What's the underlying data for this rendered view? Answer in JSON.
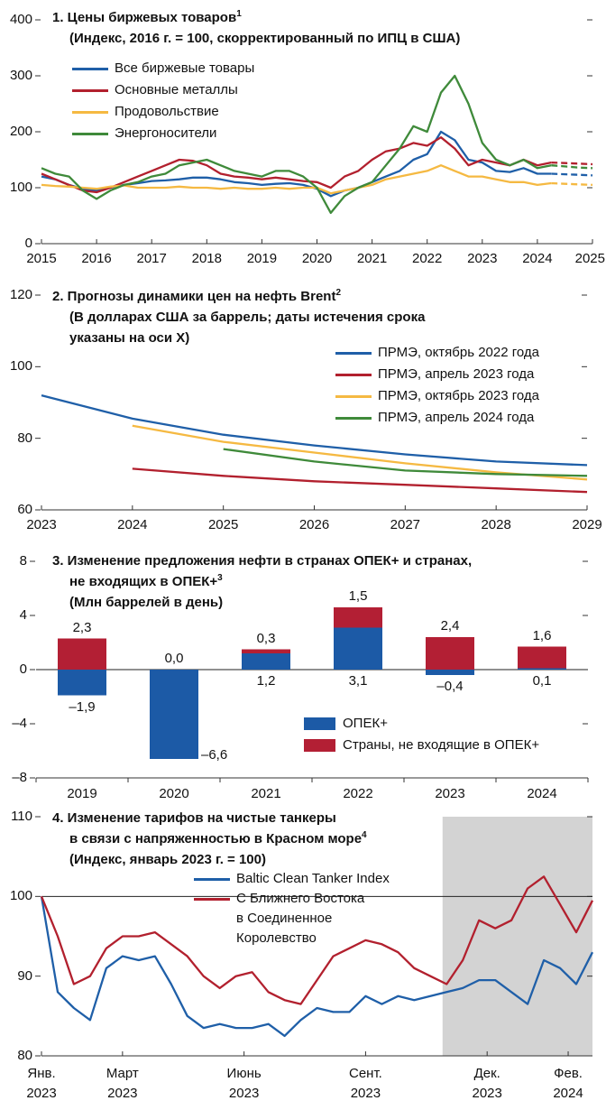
{
  "chart_data": [
    {
      "type": "line",
      "title": "1. Цены биржевых товаров",
      "title_note": "1",
      "subtitle": "(Индекс, 2016 г. = 100, скорректированный по ИПЦ в США)",
      "x": [
        2015,
        2015.25,
        2015.5,
        2015.75,
        2016,
        2016.25,
        2016.5,
        2016.75,
        2017,
        2017.25,
        2017.5,
        2017.75,
        2018,
        2018.25,
        2018.5,
        2018.75,
        2019,
        2019.25,
        2019.5,
        2019.75,
        2020,
        2020.25,
        2020.5,
        2020.75,
        2021,
        2021.25,
        2021.5,
        2021.75,
        2022,
        2022.25,
        2022.5,
        2022.75,
        2023,
        2023.25,
        2023.5,
        2023.75,
        2024,
        2024.25,
        2024.5,
        2024.75,
        2025
      ],
      "series": [
        {
          "name": "Все биржевые товары",
          "color": "#1f5fa8",
          "values": [
            120,
            115,
            105,
            98,
            95,
            100,
            105,
            108,
            112,
            113,
            115,
            118,
            118,
            115,
            110,
            108,
            105,
            107,
            108,
            105,
            98,
            85,
            95,
            100,
            110,
            120,
            130,
            150,
            160,
            200,
            185,
            150,
            145,
            130,
            128,
            135,
            125,
            125,
            124,
            123,
            122
          ]
        },
        {
          "name": "Основные металлы",
          "color": "#b2202e",
          "values": [
            125,
            115,
            105,
            95,
            92,
            100,
            110,
            120,
            130,
            140,
            150,
            148,
            140,
            125,
            120,
            118,
            115,
            118,
            115,
            112,
            110,
            100,
            120,
            130,
            150,
            165,
            170,
            180,
            175,
            190,
            170,
            140,
            150,
            145,
            140,
            150,
            140,
            145,
            144,
            143,
            142
          ]
        },
        {
          "name": "Продовольствие",
          "color": "#f5b942",
          "values": [
            105,
            103,
            102,
            100,
            98,
            102,
            104,
            100,
            100,
            100,
            102,
            100,
            100,
            98,
            100,
            98,
            98,
            100,
            98,
            100,
            100,
            90,
            95,
            100,
            105,
            115,
            120,
            125,
            130,
            140,
            130,
            120,
            120,
            115,
            110,
            110,
            105,
            108,
            107,
            106,
            105
          ]
        },
        {
          "name": "Энергоносители",
          "color": "#3f8a3a",
          "values": [
            135,
            125,
            120,
            95,
            80,
            95,
            105,
            110,
            120,
            125,
            140,
            145,
            150,
            140,
            130,
            125,
            120,
            130,
            130,
            120,
            100,
            55,
            85,
            100,
            110,
            140,
            170,
            210,
            200,
            270,
            300,
            250,
            180,
            150,
            140,
            150,
            135,
            140,
            138,
            136,
            135
          ]
        }
      ],
      "forecast_from": 2024.25,
      "xlim": [
        2015,
        2025
      ],
      "xticks": [
        2015,
        2016,
        2017,
        2018,
        2019,
        2020,
        2021,
        2022,
        2023,
        2024,
        2025
      ],
      "ylim": [
        0,
        400
      ],
      "yticks": [
        0,
        100,
        200,
        300,
        400
      ]
    },
    {
      "type": "line",
      "title": "2. Прогнозы динамики цен на нефть Brent",
      "title_note": "2",
      "subtitle": "(В долларах США за баррель; даты истечения срока\nуказаны на оси X)",
      "series": [
        {
          "name": "ПРМЭ, октябрь 2022 года",
          "color": "#1f5fa8",
          "x": [
            2023,
            2024,
            2025,
            2026,
            2027,
            2028,
            2029
          ],
          "values": [
            92,
            85.5,
            81,
            78,
            75.5,
            73.5,
            72.5
          ]
        },
        {
          "name": "ПРМЭ, апрель 2023 года",
          "color": "#b2202e",
          "x": [
            2024,
            2025,
            2026,
            2027,
            2028,
            2029
          ],
          "values": [
            71.5,
            69.5,
            68,
            67,
            66,
            65
          ]
        },
        {
          "name": "ПРМЭ, октябрь 2023 года",
          "color": "#f5b942",
          "x": [
            2024,
            2025,
            2026,
            2027,
            2028,
            2029
          ],
          "values": [
            83.5,
            79,
            76,
            73,
            70.5,
            68.5
          ]
        },
        {
          "name": "ПРМЭ, апрель 2024 года",
          "color": "#3f8a3a",
          "x": [
            2025,
            2026,
            2027,
            2028,
            2029
          ],
          "values": [
            77,
            73.5,
            71,
            70,
            69.5
          ]
        }
      ],
      "xlim": [
        2023,
        2029
      ],
      "xticks": [
        2023,
        2024,
        2025,
        2026,
        2027,
        2028,
        2029
      ],
      "ylim": [
        60,
        120
      ],
      "yticks": [
        60,
        80,
        100,
        120
      ]
    },
    {
      "type": "stacked_bar",
      "title": "3. Изменение предложения нефти в странах ОПЕК+ и странах,\nне входящих в ОПЕК+",
      "title_note": "3",
      "subtitle": "(Млн баррелей в день)",
      "categories": [
        "2019",
        "2020",
        "2021",
        "2022",
        "2023",
        "2024"
      ],
      "series": [
        {
          "name": "ОПЕК+",
          "color": "#1c5aa6",
          "values": [
            -1.9,
            -6.6,
            1.2,
            3.1,
            -0.4,
            0.1
          ],
          "value_labels": [
            "–1,9",
            "–6,6",
            "1,2",
            "3,1",
            "–0,4",
            "0,1"
          ]
        },
        {
          "name": "Страны, не входящие в ОПЕК+",
          "color": "#b31f34",
          "values": [
            2.3,
            0.0,
            0.3,
            1.5,
            2.4,
            1.6
          ],
          "value_labels": [
            "2,3",
            "0,0",
            "0,3",
            "1,5",
            "2,4",
            "1,6"
          ]
        }
      ],
      "ylim": [
        -8,
        8
      ],
      "yticks": [
        {
          "value": -8,
          "label": "–8"
        },
        {
          "value": -4,
          "label": "–4"
        },
        0,
        4,
        8
      ]
    },
    {
      "type": "line",
      "title": "4. Изменение тарифов на чистые танкеры\nв связи с напряженностью в Красном море",
      "title_note": "4",
      "subtitle": "(Индекс, январь 2023 г. = 100)",
      "x": [
        0,
        0.4,
        0.8,
        1.2,
        1.6,
        2,
        2.4,
        2.8,
        3.2,
        3.6,
        4,
        4.4,
        4.8,
        5.2,
        5.6,
        6,
        6.4,
        6.8,
        7.2,
        7.6,
        8,
        8.4,
        8.8,
        9.2,
        9.6,
        10,
        10.4,
        10.8,
        11.2,
        11.6,
        12,
        12.4,
        12.8,
        13.2,
        13.6
      ],
      "series": [
        {
          "name": "Baltic Clean Tanker Index",
          "color": "#1f5fa8",
          "values": [
            100,
            88,
            86,
            84.5,
            91,
            92.5,
            92,
            92.5,
            89,
            85,
            83.5,
            84,
            83.5,
            83.5,
            84,
            82.5,
            84.5,
            86,
            85.5,
            85.5,
            87.5,
            86.5,
            87.5,
            87,
            87.5,
            88,
            88.5,
            89.5,
            89.5,
            88,
            86.5,
            92,
            91,
            89,
            93
          ]
        },
        {
          "name": "С Ближнего Востока\nв Соединенное\nКоролевство",
          "color": "#b2202e",
          "values": [
            100,
            95,
            89,
            90,
            93.5,
            95,
            95,
            95.5,
            94,
            92.5,
            90,
            88.5,
            90,
            90.5,
            88,
            87,
            86.5,
            89.5,
            92.5,
            93.5,
            94.5,
            94,
            93,
            91,
            90,
            89,
            92,
            97,
            96,
            97,
            101,
            102.5,
            99,
            95.5,
            99.5
          ]
        }
      ],
      "shade": [
        9.9,
        13.6
      ],
      "hline": 100,
      "xlim": [
        0,
        13.6
      ],
      "xticks": [
        {
          "value": 0,
          "label": "Янв.\n2023"
        },
        {
          "value": 2,
          "label": "Март\n2023"
        },
        {
          "value": 5,
          "label": "Июнь\n2023"
        },
        {
          "value": 8,
          "label": "Сент.\n2023"
        },
        {
          "value": 11,
          "label": "Дек.\n2023"
        },
        {
          "value": 13,
          "label": "Фев.\n2024"
        }
      ],
      "ylim": [
        80,
        110
      ],
      "yticks": [
        80,
        90,
        100,
        110
      ]
    }
  ]
}
